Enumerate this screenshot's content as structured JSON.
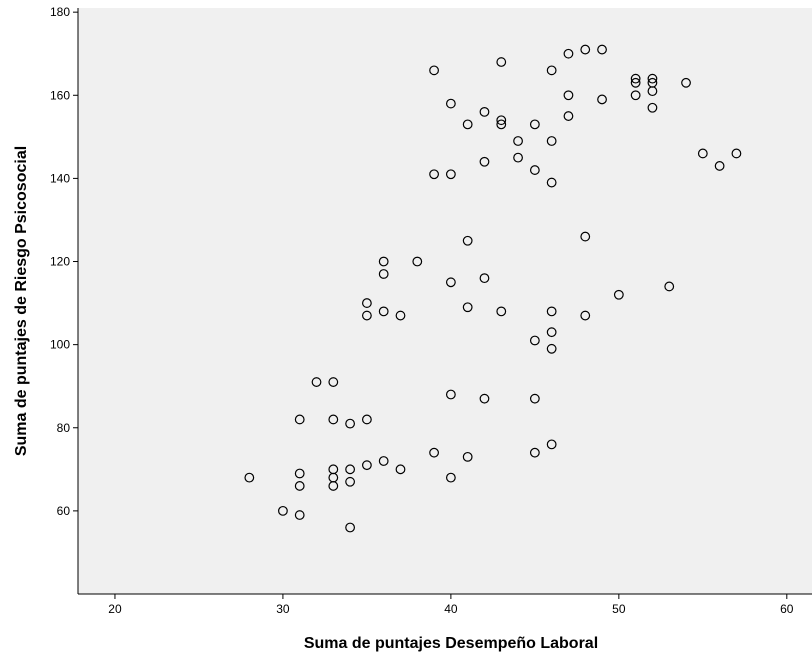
{
  "chart_data": {
    "type": "scatter",
    "title": "",
    "xlabel": "Suma de puntajes Desempeño Laboral",
    "ylabel": "Suma de puntajes de Riesgo Psicosocial",
    "xlim": [
      17.8,
      61.5
    ],
    "ylim": [
      40,
      181
    ],
    "xticks": [
      20,
      30,
      40,
      50,
      60
    ],
    "yticks": [
      60,
      80,
      100,
      120,
      140,
      160,
      180
    ],
    "grid": false,
    "marker": "open-circle",
    "colors": {
      "plot_background": "#f0f0f0",
      "marker_stroke": "#000000",
      "axis": "#000000"
    },
    "points": [
      [
        39,
        166
      ],
      [
        43,
        168
      ],
      [
        46,
        166
      ],
      [
        47,
        170
      ],
      [
        48,
        171
      ],
      [
        49,
        171
      ],
      [
        51,
        164
      ],
      [
        51,
        163
      ],
      [
        52,
        164
      ],
      [
        52,
        163
      ],
      [
        54,
        163
      ],
      [
        51,
        160
      ],
      [
        52,
        161
      ],
      [
        40,
        158
      ],
      [
        42,
        156
      ],
      [
        47,
        160
      ],
      [
        49,
        159
      ],
      [
        52,
        157
      ],
      [
        41,
        153
      ],
      [
        43,
        154
      ],
      [
        43,
        153
      ],
      [
        45,
        153
      ],
      [
        47,
        155
      ],
      [
        44,
        149
      ],
      [
        46,
        149
      ],
      [
        44,
        145
      ],
      [
        42,
        144
      ],
      [
        45,
        142
      ],
      [
        39,
        141
      ],
      [
        40,
        141
      ],
      [
        46,
        139
      ],
      [
        55,
        146
      ],
      [
        56,
        143
      ],
      [
        57,
        146
      ],
      [
        41,
        125
      ],
      [
        48,
        126
      ],
      [
        36,
        120
      ],
      [
        38,
        120
      ],
      [
        36,
        117
      ],
      [
        40,
        115
      ],
      [
        42,
        116
      ],
      [
        35,
        110
      ],
      [
        35,
        107
      ],
      [
        36,
        108
      ],
      [
        37,
        107
      ],
      [
        41,
        109
      ],
      [
        43,
        108
      ],
      [
        46,
        108
      ],
      [
        48,
        107
      ],
      [
        50,
        112
      ],
      [
        53,
        114
      ],
      [
        46,
        103
      ],
      [
        45,
        101
      ],
      [
        46,
        99
      ],
      [
        32,
        91
      ],
      [
        33,
        91
      ],
      [
        40,
        88
      ],
      [
        42,
        87
      ],
      [
        45,
        87
      ],
      [
        31,
        82
      ],
      [
        33,
        82
      ],
      [
        34,
        81
      ],
      [
        35,
        82
      ],
      [
        39,
        74
      ],
      [
        41,
        73
      ],
      [
        45,
        74
      ],
      [
        46,
        76
      ],
      [
        28,
        68
      ],
      [
        31,
        69
      ],
      [
        31,
        66
      ],
      [
        33,
        70
      ],
      [
        33,
        68
      ],
      [
        33,
        66
      ],
      [
        34,
        70
      ],
      [
        34,
        67
      ],
      [
        35,
        71
      ],
      [
        36,
        72
      ],
      [
        37,
        70
      ],
      [
        40,
        68
      ],
      [
        30,
        60
      ],
      [
        31,
        59
      ],
      [
        34,
        56
      ]
    ]
  }
}
